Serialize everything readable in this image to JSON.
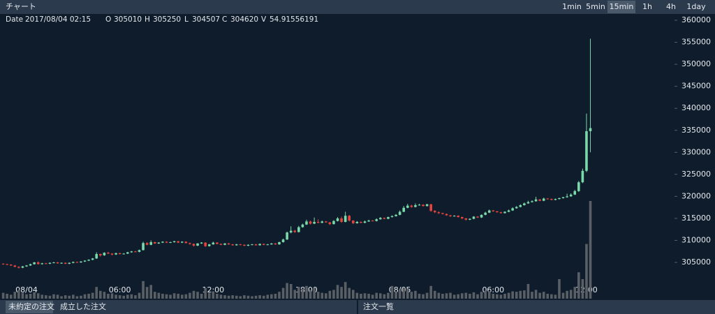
{
  "toolbar": {
    "title": "チャート",
    "timeframes": [
      "1min",
      "5min",
      "15min",
      "1h",
      "4h",
      "1day"
    ],
    "active": 2
  },
  "info": {
    "date_label": "Date",
    "date": "2017/08/04 02:15",
    "o_label": "O",
    "o": 305010,
    "h_label": "H",
    "h": 305250,
    "l_label": "L",
    "l": 304507,
    "c_label": "C",
    "c": 304620,
    "v_label": "V",
    "v": 54.91556191
  },
  "chart_data": {
    "type": "candlestick",
    "up_color": "#7ad9ab",
    "down_color": "#e5443d",
    "volume_color": "#5a5f66",
    "ylim": [
      296770,
      361110
    ],
    "yticks": [
      305000,
      310000,
      315000,
      320000,
      325000,
      330000,
      335000,
      340000,
      345000,
      350000,
      355000,
      360000
    ],
    "xlim": [
      -0.82,
      172.45
    ],
    "xticks": [
      {
        "value": 6,
        "label": "08/04"
      },
      {
        "value": 30,
        "label": "06:00"
      },
      {
        "value": 54,
        "label": "12:00"
      },
      {
        "value": 78,
        "label": "18:00"
      },
      {
        "value": 102,
        "label": "08/05"
      },
      {
        "value": 126,
        "label": "06:00"
      },
      {
        "value": 150,
        "label": "12:00"
      }
    ],
    "candles": [
      [
        304700,
        304800,
        304500,
        304600,
        60
      ],
      [
        304600,
        304700,
        304400,
        304500,
        50
      ],
      [
        304500,
        304600,
        304200,
        304300,
        40
      ],
      [
        304300,
        304400,
        303900,
        304000,
        70
      ],
      [
        304000,
        304100,
        303600,
        303800,
        90
      ],
      [
        303800,
        304200,
        303700,
        304100,
        60
      ],
      [
        304100,
        304400,
        304000,
        304300,
        45
      ],
      [
        304300,
        304700,
        304200,
        304600,
        50
      ],
      [
        304600,
        305100,
        304500,
        305010,
        65
      ],
      [
        305010,
        305250,
        304507,
        304620,
        54.91556191
      ],
      [
        304620,
        304900,
        304500,
        304800,
        40
      ],
      [
        304800,
        304900,
        304600,
        304700,
        35
      ],
      [
        304700,
        305000,
        304600,
        304900,
        30
      ],
      [
        304900,
        305100,
        304800,
        305000,
        45
      ],
      [
        305000,
        305100,
        304700,
        304800,
        40
      ],
      [
        304800,
        305000,
        304700,
        304900,
        25
      ],
      [
        304900,
        305000,
        304600,
        304700,
        35
      ],
      [
        304700,
        305000,
        304600,
        304900,
        30
      ],
      [
        304900,
        305200,
        304800,
        305100,
        40
      ],
      [
        305100,
        305200,
        304900,
        305000,
        25
      ],
      [
        305000,
        305300,
        304900,
        305200,
        30
      ],
      [
        305200,
        305500,
        305100,
        305400,
        45
      ],
      [
        305400,
        305700,
        305300,
        305600,
        50
      ],
      [
        305600,
        306000,
        305500,
        305900,
        60
      ],
      [
        305900,
        307300,
        305800,
        306900,
        120
      ],
      [
        306900,
        307000,
        306300,
        306600,
        80
      ],
      [
        306600,
        307300,
        306500,
        307200,
        70
      ],
      [
        307200,
        307400,
        306900,
        307000,
        50
      ],
      [
        307000,
        307100,
        306600,
        306800,
        55
      ],
      [
        306800,
        307200,
        306700,
        307100,
        40
      ],
      [
        307100,
        307200,
        306800,
        306900,
        35
      ],
      [
        306900,
        307100,
        306800,
        307000,
        30
      ],
      [
        307000,
        307400,
        306900,
        307300,
        40
      ],
      [
        307300,
        307600,
        307200,
        307500,
        45
      ],
      [
        307500,
        307600,
        307300,
        307400,
        35
      ],
      [
        307400,
        307900,
        307300,
        307800,
        60
      ],
      [
        307800,
        309700,
        307700,
        309400,
        180
      ],
      [
        309400,
        309600,
        308900,
        309000,
        120
      ],
      [
        309000,
        310000,
        308900,
        309600,
        140
      ],
      [
        309600,
        309700,
        309200,
        309300,
        70
      ],
      [
        309300,
        309600,
        309200,
        309500,
        60
      ],
      [
        309500,
        309800,
        309400,
        309700,
        50
      ],
      [
        309700,
        309800,
        309400,
        309500,
        45
      ],
      [
        309500,
        309700,
        309400,
        309600,
        40
      ],
      [
        309600,
        309900,
        309500,
        309800,
        55
      ],
      [
        309800,
        309900,
        309400,
        309500,
        50
      ],
      [
        309500,
        309800,
        309400,
        309700,
        40
      ],
      [
        309700,
        309800,
        309300,
        309400,
        45
      ],
      [
        309400,
        309500,
        309000,
        309200,
        60
      ],
      [
        309200,
        309300,
        308600,
        308800,
        80
      ],
      [
        308800,
        309400,
        308700,
        309300,
        70
      ],
      [
        309300,
        309600,
        309200,
        309500,
        50
      ],
      [
        309500,
        309600,
        308500,
        308700,
        110
      ],
      [
        308700,
        309200,
        308600,
        309100,
        60
      ],
      [
        309100,
        309700,
        309000,
        309500,
        75
      ],
      [
        309500,
        309600,
        309100,
        309200,
        50
      ],
      [
        309200,
        309300,
        308900,
        309000,
        40
      ],
      [
        309000,
        309400,
        308900,
        309300,
        35
      ],
      [
        309300,
        309400,
        309000,
        309100,
        30
      ],
      [
        309100,
        309200,
        308800,
        308900,
        35
      ],
      [
        308900,
        309200,
        308800,
        309100,
        30
      ],
      [
        309100,
        309200,
        308900,
        309000,
        25
      ],
      [
        309000,
        309100,
        308700,
        308800,
        35
      ],
      [
        308800,
        309100,
        308700,
        309000,
        30
      ],
      [
        309000,
        309200,
        308900,
        309100,
        25
      ],
      [
        309100,
        309200,
        308800,
        308900,
        30
      ],
      [
        308900,
        309300,
        308800,
        309200,
        35
      ],
      [
        309200,
        309300,
        308900,
        309000,
        30
      ],
      [
        309000,
        309200,
        308900,
        309100,
        40
      ],
      [
        309100,
        309400,
        309000,
        309300,
        45
      ],
      [
        309300,
        309400,
        309000,
        309100,
        50
      ],
      [
        309100,
        309700,
        309000,
        309600,
        70
      ],
      [
        309600,
        310400,
        309500,
        310200,
        110
      ],
      [
        310200,
        312000,
        310100,
        311800,
        160
      ],
      [
        311800,
        313200,
        311600,
        312200,
        150
      ],
      [
        312200,
        312400,
        311700,
        311900,
        90
      ],
      [
        311900,
        313300,
        311800,
        313000,
        120
      ],
      [
        313000,
        313800,
        312900,
        313600,
        100
      ],
      [
        313600,
        314700,
        313500,
        314300,
        130
      ],
      [
        314300,
        314500,
        313600,
        313800,
        90
      ],
      [
        313800,
        315200,
        313700,
        314200,
        110
      ],
      [
        314200,
        314800,
        313900,
        314000,
        70
      ],
      [
        314000,
        314500,
        313900,
        314300,
        60
      ],
      [
        314300,
        314400,
        314000,
        314100,
        55
      ],
      [
        314100,
        314200,
        313500,
        313700,
        80
      ],
      [
        313700,
        314600,
        313600,
        314400,
        90
      ],
      [
        314400,
        315300,
        314300,
        315000,
        140
      ],
      [
        315000,
        315400,
        314000,
        314200,
        120
      ],
      [
        314200,
        316500,
        314100,
        315600,
        170
      ],
      [
        315600,
        315800,
        314300,
        314500,
        110
      ],
      [
        314500,
        314600,
        313700,
        313900,
        90
      ],
      [
        313900,
        314400,
        313800,
        314200,
        60
      ],
      [
        314200,
        314300,
        313900,
        314000,
        50
      ],
      [
        314000,
        314500,
        313900,
        314300,
        55
      ],
      [
        314300,
        314700,
        314200,
        314500,
        50
      ],
      [
        314500,
        314600,
        314300,
        314400,
        40
      ],
      [
        314400,
        315000,
        314300,
        314800,
        60
      ],
      [
        314800,
        315300,
        314700,
        315100,
        55
      ],
      [
        315100,
        315200,
        314800,
        314900,
        45
      ],
      [
        314900,
        315400,
        314800,
        315300,
        60
      ],
      [
        315300,
        315700,
        315200,
        315500,
        130
      ],
      [
        315500,
        316000,
        315400,
        315800,
        70
      ],
      [
        315800,
        316800,
        315700,
        316500,
        90
      ],
      [
        316500,
        317800,
        316400,
        317400,
        110
      ],
      [
        317400,
        318300,
        317300,
        317900,
        100
      ],
      [
        317900,
        318100,
        317400,
        317600,
        70
      ],
      [
        317600,
        318400,
        317500,
        318000,
        80
      ],
      [
        318000,
        318300,
        317900,
        318100,
        50
      ],
      [
        318100,
        318200,
        317700,
        317800,
        45
      ],
      [
        317800,
        318300,
        317700,
        318200,
        60
      ],
      [
        318200,
        318300,
        316500,
        316700,
        130
      ],
      [
        316700,
        316900,
        316200,
        316400,
        80
      ],
      [
        316400,
        316600,
        316000,
        316200,
        60
      ],
      [
        316200,
        316300,
        315900,
        316000,
        50
      ],
      [
        316000,
        316100,
        315600,
        315700,
        55
      ],
      [
        315700,
        315800,
        315300,
        315500,
        60
      ],
      [
        315500,
        315700,
        315400,
        315600,
        40
      ],
      [
        315600,
        315700,
        315200,
        315300,
        45
      ],
      [
        315300,
        315400,
        314800,
        315000,
        55
      ],
      [
        315000,
        315100,
        314500,
        314700,
        60
      ],
      [
        314700,
        315000,
        314600,
        314900,
        50
      ],
      [
        314900,
        315500,
        314800,
        315400,
        65
      ],
      [
        315400,
        315500,
        315100,
        315200,
        45
      ],
      [
        315200,
        315900,
        315100,
        315800,
        70
      ],
      [
        315800,
        316500,
        315700,
        316300,
        80
      ],
      [
        316300,
        317000,
        316200,
        316800,
        75
      ],
      [
        316800,
        316900,
        316500,
        316600,
        50
      ],
      [
        316600,
        316700,
        316300,
        316400,
        45
      ],
      [
        316400,
        316500,
        316100,
        316200,
        40
      ],
      [
        316200,
        316600,
        316100,
        316500,
        50
      ],
      [
        316500,
        317000,
        316400,
        316800,
        60
      ],
      [
        316800,
        317500,
        316700,
        317300,
        75
      ],
      [
        317300,
        317800,
        317200,
        317600,
        70
      ],
      [
        317600,
        318200,
        317500,
        318000,
        80
      ],
      [
        318000,
        318600,
        317900,
        318400,
        85
      ],
      [
        318400,
        319000,
        318300,
        318700,
        150
      ],
      [
        318700,
        319100,
        318600,
        318900,
        70
      ],
      [
        318900,
        319900,
        318800,
        319300,
        90
      ],
      [
        319300,
        319400,
        318900,
        319000,
        60
      ],
      [
        319000,
        319700,
        318900,
        319500,
        70
      ],
      [
        319500,
        319600,
        319300,
        319400,
        50
      ],
      [
        319400,
        319500,
        319100,
        319200,
        45
      ],
      [
        319200,
        319500,
        319100,
        319400,
        40
      ],
      [
        319400,
        319700,
        319300,
        319600,
        200
      ],
      [
        319600,
        319900,
        319500,
        319800,
        60
      ],
      [
        319800,
        320600,
        319700,
        320000,
        80
      ],
      [
        320000,
        320700,
        319900,
        320400,
        90
      ],
      [
        320400,
        321500,
        320300,
        321200,
        120
      ],
      [
        321200,
        323500,
        321000,
        323200,
        270
      ],
      [
        323200,
        326300,
        323000,
        325800,
        200
      ],
      [
        325800,
        338800,
        325500,
        334800,
        560
      ],
      [
        334800,
        355800,
        330000,
        335500,
        1000
      ]
    ]
  },
  "footer": {
    "tabs": [
      "未約定の注文",
      "成立した注文"
    ],
    "right": "注文一覧"
  }
}
